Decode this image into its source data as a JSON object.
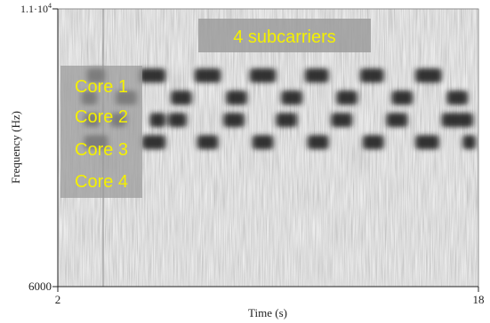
{
  "chart_data": {
    "type": "heatmap",
    "title": "",
    "xlabel": "Time (s)",
    "ylabel": "Frequency (Hz)",
    "xlim": [
      2,
      18
    ],
    "ylim": [
      6000,
      11000
    ],
    "x_ticks": [
      "2",
      "18"
    ],
    "y_ticks": [
      "6000",
      "1.1·10⁴"
    ],
    "y_top_tick": {
      "mantissa": "1.1·10",
      "exponent": "4"
    },
    "grid": false,
    "colormap": "grayscale, darker = higher power",
    "annotations": [
      {
        "text": "4 subcarriers"
      },
      {
        "text": "Core 1"
      },
      {
        "text": "Core 2"
      },
      {
        "text": "Core 3"
      },
      {
        "text": "Core 4"
      }
    ],
    "series": [
      {
        "name": "Core 1",
        "frequency_hz": 9800,
        "bursts_s": [
          [
            3.1,
            3.8
          ],
          [
            5.1,
            6.1
          ],
          [
            7.2,
            8.2
          ],
          [
            9.3,
            10.3
          ],
          [
            11.4,
            12.3
          ],
          [
            13.5,
            14.4
          ],
          [
            15.6,
            16.6
          ]
        ]
      },
      {
        "name": "Core 2",
        "frequency_hz": 9400,
        "bursts_s": [
          [
            2.9,
            3.5
          ],
          [
            4.2,
            5.0
          ],
          [
            6.3,
            7.1
          ],
          [
            8.4,
            9.2
          ],
          [
            10.5,
            11.3
          ],
          [
            12.6,
            13.4
          ],
          [
            14.7,
            15.5
          ],
          [
            16.8,
            17.6
          ]
        ]
      },
      {
        "name": "Core 3",
        "frequency_hz": 9000,
        "bursts_s": [
          [
            3.0,
            3.6
          ],
          [
            4.0,
            4.6
          ],
          [
            5.5,
            6.1
          ],
          [
            6.2,
            6.9
          ],
          [
            8.3,
            9.1
          ],
          [
            10.3,
            11.1
          ],
          [
            12.4,
            13.2
          ],
          [
            14.5,
            15.3
          ],
          [
            16.6,
            17.8
          ]
        ]
      },
      {
        "name": "Core 4",
        "frequency_hz": 8600,
        "bursts_s": [
          [
            3.0,
            3.9
          ],
          [
            5.2,
            6.1
          ],
          [
            7.3,
            8.1
          ],
          [
            9.4,
            10.2
          ],
          [
            11.5,
            12.3
          ],
          [
            13.6,
            14.4
          ],
          [
            15.6,
            16.5
          ],
          [
            17.4,
            17.9
          ]
        ]
      }
    ]
  },
  "colors": {
    "background_light": "#d6d6d6",
    "burst": "#242424",
    "overlay_box": "#9a9a9a",
    "overlay_text": "#f4f000",
    "axis": "#222222"
  }
}
